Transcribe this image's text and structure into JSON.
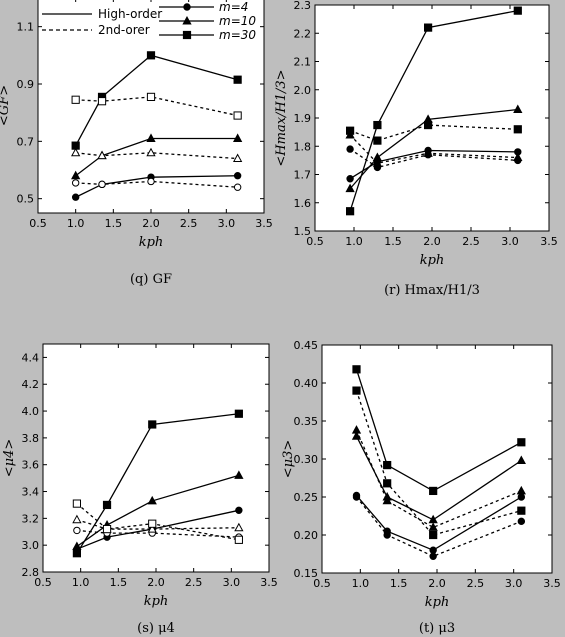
{
  "chart_data": [
    {
      "type": "line",
      "caption": "(q) GF",
      "xlabel": "kph",
      "ylabel": "<GF>",
      "xlim": [
        0.5,
        3.5
      ],
      "ylim": [
        0.45,
        1.2
      ],
      "xticks": [
        "0.5",
        "1.0",
        "1.5",
        "2.0",
        "2.5",
        "3.0",
        "3.5"
      ],
      "yticks": [
        "0.5",
        "0.7",
        "0.9",
        "1.1"
      ],
      "legend_styles": [
        "High-order",
        "2nd-orer"
      ],
      "legend_series": [
        "m=4",
        "m=10",
        "m=30"
      ],
      "series": [
        {
          "name": "m=4 High-order",
          "marker": "circle",
          "filled": true,
          "dash": false,
          "x": [
            1.0,
            1.35,
            2.0,
            3.15
          ],
          "y": [
            0.505,
            0.55,
            0.575,
            0.58
          ]
        },
        {
          "name": "m=10 High-order",
          "marker": "triangle",
          "filled": true,
          "dash": false,
          "x": [
            1.0,
            1.35,
            2.0,
            3.15
          ],
          "y": [
            0.58,
            0.65,
            0.71,
            0.71
          ]
        },
        {
          "name": "m=30 High-order",
          "marker": "square",
          "filled": true,
          "dash": false,
          "x": [
            1.0,
            1.35,
            2.0,
            3.15
          ],
          "y": [
            0.685,
            0.855,
            1.0,
            0.915
          ]
        },
        {
          "name": "m=4 2nd-order",
          "marker": "circle",
          "filled": false,
          "dash": true,
          "x": [
            1.0,
            1.35,
            2.0,
            3.15
          ],
          "y": [
            0.555,
            0.55,
            0.56,
            0.54
          ]
        },
        {
          "name": "m=10 2nd-order",
          "marker": "triangle",
          "filled": false,
          "dash": true,
          "x": [
            1.0,
            1.35,
            2.0,
            3.15
          ],
          "y": [
            0.66,
            0.65,
            0.66,
            0.64
          ]
        },
        {
          "name": "m=30 2nd-order",
          "marker": "square",
          "filled": false,
          "dash": true,
          "x": [
            1.0,
            1.35,
            2.0,
            3.15
          ],
          "y": [
            0.845,
            0.84,
            0.855,
            0.79
          ]
        }
      ]
    },
    {
      "type": "line",
      "caption": "(r) Hmax/H1/3",
      "xlabel": "kph",
      "ylabel": "<Hmax/H1/3>",
      "xlim": [
        0.5,
        3.5
      ],
      "ylim": [
        1.5,
        2.3
      ],
      "xticks": [
        "0.5",
        "1.0",
        "1.5",
        "2.0",
        "2.5",
        "3.0",
        "3.5"
      ],
      "yticks": [
        "1.5",
        "1.6",
        "1.7",
        "1.8",
        "1.9",
        "2.0",
        "2.1",
        "2.2",
        "2.3"
      ],
      "series": [
        {
          "name": "m=4 High-order",
          "marker": "circle",
          "filled": true,
          "dash": false,
          "x": [
            0.95,
            1.3,
            1.95,
            3.1
          ],
          "y": [
            1.685,
            1.745,
            1.785,
            1.78
          ]
        },
        {
          "name": "m=10 High-order",
          "marker": "triangle",
          "filled": true,
          "dash": false,
          "x": [
            0.95,
            1.3,
            1.95,
            3.1
          ],
          "y": [
            1.65,
            1.76,
            1.895,
            1.93
          ]
        },
        {
          "name": "m=30 High-order",
          "marker": "square",
          "filled": true,
          "dash": false,
          "x": [
            0.95,
            1.3,
            1.95,
            3.1
          ],
          "y": [
            1.57,
            1.875,
            2.22,
            2.28
          ]
        },
        {
          "name": "m=4 2nd-order",
          "marker": "circle",
          "filled": true,
          "dash": true,
          "x": [
            0.95,
            1.3,
            1.95,
            3.1
          ],
          "y": [
            1.79,
            1.725,
            1.77,
            1.75
          ]
        },
        {
          "name": "m=10 2nd-order",
          "marker": "triangle",
          "filled": true,
          "dash": true,
          "x": [
            0.95,
            1.3,
            1.95,
            3.1
          ],
          "y": [
            1.84,
            1.74,
            1.775,
            1.76
          ]
        },
        {
          "name": "m=30 2nd-order",
          "marker": "square",
          "filled": true,
          "dash": true,
          "x": [
            0.95,
            1.3,
            1.95,
            3.1
          ],
          "y": [
            1.855,
            1.82,
            1.875,
            1.86
          ]
        }
      ]
    },
    {
      "type": "line",
      "caption": "(s) μ4",
      "xlabel": "kph",
      "ylabel": "<μ4>",
      "xlim": [
        0.5,
        3.5
      ],
      "ylim": [
        2.8,
        4.5
      ],
      "xticks": [
        "0.5",
        "1.0",
        "1.5",
        "2.0",
        "2.5",
        "3.0",
        "3.5"
      ],
      "yticks": [
        "2.8",
        "3.0",
        "3.2",
        "3.4",
        "3.6",
        "3.8",
        "4.0",
        "4.2",
        "4.4"
      ],
      "series": [
        {
          "name": "m=4 High-order",
          "marker": "circle",
          "filled": true,
          "dash": false,
          "x": [
            0.95,
            1.35,
            1.95,
            3.1
          ],
          "y": [
            2.97,
            3.06,
            3.12,
            3.26
          ]
        },
        {
          "name": "m=10 High-order",
          "marker": "triangle",
          "filled": true,
          "dash": false,
          "x": [
            0.95,
            1.35,
            1.95,
            3.1
          ],
          "y": [
            2.99,
            3.15,
            3.33,
            3.52
          ]
        },
        {
          "name": "m=30 High-order",
          "marker": "square",
          "filled": true,
          "dash": false,
          "x": [
            0.95,
            1.35,
            1.95,
            3.1
          ],
          "y": [
            2.94,
            3.3,
            3.9,
            3.98
          ]
        },
        {
          "name": "m=4 2nd-order",
          "marker": "circle",
          "filled": false,
          "dash": true,
          "x": [
            0.95,
            1.35,
            1.95,
            3.1
          ],
          "y": [
            3.11,
            3.09,
            3.09,
            3.06
          ]
        },
        {
          "name": "m=10 2nd-order",
          "marker": "triangle",
          "filled": false,
          "dash": true,
          "x": [
            0.95,
            1.35,
            1.95,
            3.1
          ],
          "y": [
            3.19,
            3.12,
            3.12,
            3.13
          ]
        },
        {
          "name": "m=30 2nd-order",
          "marker": "square",
          "filled": false,
          "dash": true,
          "x": [
            0.95,
            1.35,
            1.95,
            3.1
          ],
          "y": [
            3.31,
            3.12,
            3.16,
            3.04
          ]
        }
      ]
    },
    {
      "type": "line",
      "caption": "(t) μ3",
      "xlabel": "kph",
      "ylabel": "<μ3>",
      "xlim": [
        0.5,
        3.5
      ],
      "ylim": [
        0.15,
        0.45
      ],
      "xticks": [
        "0.5",
        "1.0",
        "1.5",
        "2.0",
        "2.5",
        "3.0",
        "3.5"
      ],
      "yticks": [
        "0.15",
        "0.20",
        "0.25",
        "0.30",
        "0.35",
        "0.40",
        "0.45"
      ],
      "series": [
        {
          "name": "m=4 High-order",
          "marker": "circle",
          "filled": true,
          "dash": false,
          "x": [
            0.95,
            1.35,
            1.95,
            3.1
          ],
          "y": [
            0.252,
            0.205,
            0.18,
            0.25
          ]
        },
        {
          "name": "m=10 High-order",
          "marker": "triangle",
          "filled": true,
          "dash": false,
          "x": [
            0.95,
            1.35,
            1.95,
            3.1
          ],
          "y": [
            0.33,
            0.25,
            0.22,
            0.298
          ]
        },
        {
          "name": "m=30 High-order",
          "marker": "square",
          "filled": true,
          "dash": false,
          "x": [
            0.95,
            1.35,
            1.95,
            3.1
          ],
          "y": [
            0.418,
            0.292,
            0.258,
            0.322
          ]
        },
        {
          "name": "m=4 2nd-order",
          "marker": "circle",
          "filled": true,
          "dash": true,
          "x": [
            0.95,
            1.35,
            1.95,
            3.1
          ],
          "y": [
            0.25,
            0.2,
            0.172,
            0.218
          ]
        },
        {
          "name": "m=10 2nd-order",
          "marker": "triangle",
          "filled": true,
          "dash": true,
          "x": [
            0.95,
            1.35,
            1.95,
            3.1
          ],
          "y": [
            0.338,
            0.245,
            0.21,
            0.258
          ]
        },
        {
          "name": "m=30 2nd-order",
          "marker": "square",
          "filled": true,
          "dash": true,
          "x": [
            0.95,
            1.35,
            1.95,
            3.1
          ],
          "y": [
            0.39,
            0.268,
            0.2,
            0.232
          ]
        }
      ]
    }
  ]
}
